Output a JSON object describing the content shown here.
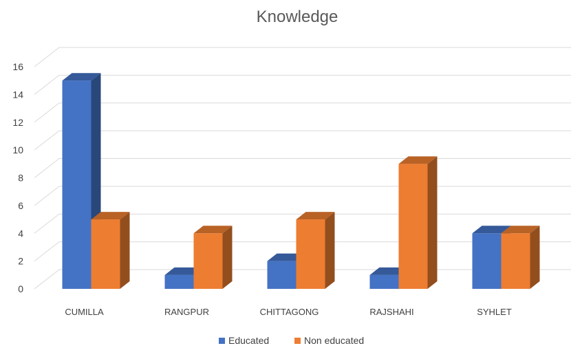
{
  "chart_data": {
    "type": "bar",
    "title": "Knowledge",
    "xlabel": "",
    "ylabel": "",
    "categories": [
      "CUMILLA",
      "RANGPUR",
      "CHITTAGONG",
      "RAJSHAHI",
      "SYHLET"
    ],
    "series": [
      {
        "name": "Educated",
        "values": [
          15,
          1,
          2,
          1,
          4
        ],
        "color": "#4472C4"
      },
      {
        "name": "Non educated",
        "values": [
          5,
          4,
          5,
          9,
          4
        ],
        "color": "#ED7D31"
      }
    ],
    "ylim": [
      0,
      16
    ],
    "yticks": [
      "0",
      "2",
      "4",
      "6",
      "8",
      "10",
      "12",
      "14",
      "16"
    ],
    "grid": true,
    "legend": "bottom",
    "style": "3d-clustered-column"
  }
}
